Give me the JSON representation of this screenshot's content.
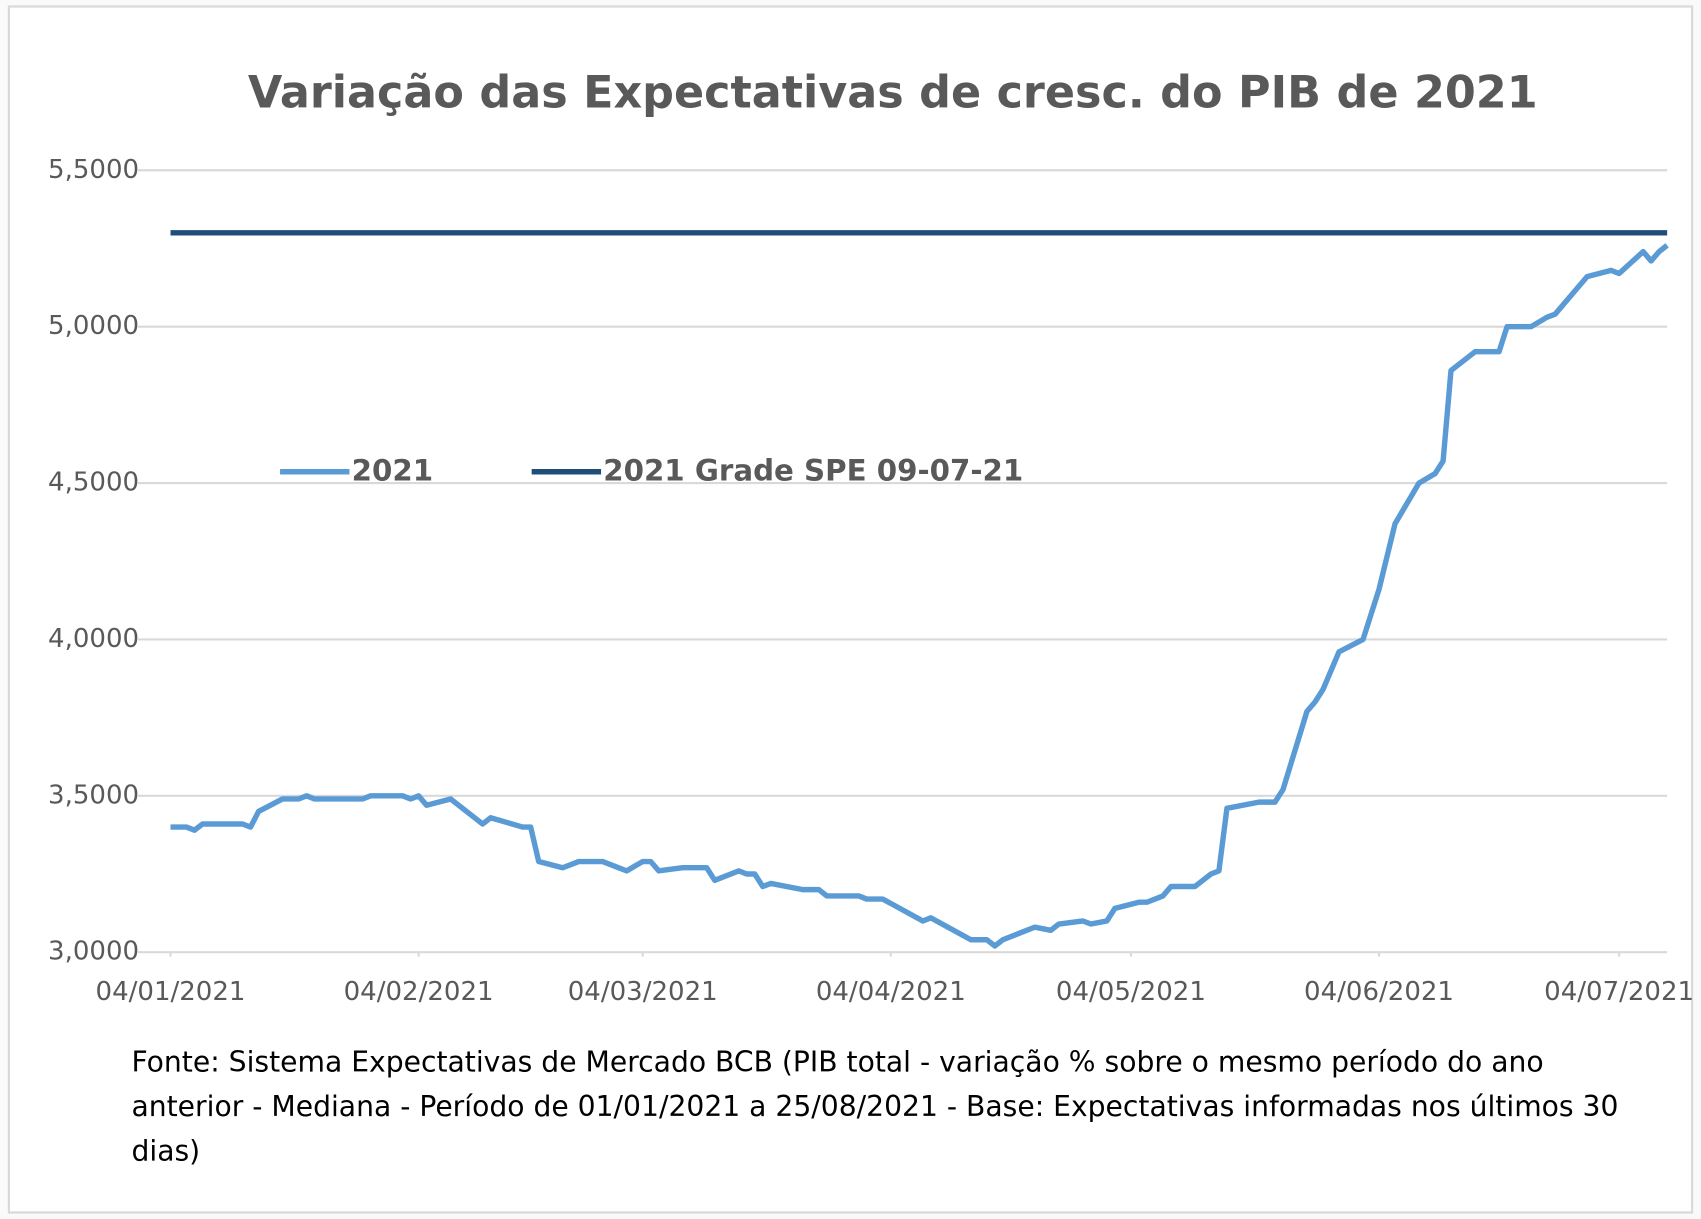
{
  "chart_data": {
    "type": "line",
    "title": "Variação das Expectativas de cresc. do PIB de 2021",
    "note": "Fonte: Sistema Expectativas de Mercado BCB (PIB total - variação % sobre o mesmo período do ano anterior - Mediana - Período de 01/01/2021 a 25/08/2021 - Base: Expectativas informadas nos últimos 30 dias)",
    "xlim": [
      "04/01/2021",
      "10/07/2021"
    ],
    "xticks": [
      "04/01/2021",
      "04/02/2021",
      "04/03/2021",
      "04/04/2021",
      "04/05/2021",
      "04/06/2021",
      "04/07/2021"
    ],
    "ylim": [
      3.0,
      5.5
    ],
    "yticks": [
      {
        "value": 3.0,
        "label": "3,0000"
      },
      {
        "value": 3.5,
        "label": "3,5000"
      },
      {
        "value": 4.0,
        "label": "4,0000"
      },
      {
        "value": 4.5,
        "label": "4,5000"
      },
      {
        "value": 5.0,
        "label": "5,0000"
      },
      {
        "value": 5.5,
        "label": "5,5000"
      }
    ],
    "grid": true,
    "legend": "top-left",
    "series": [
      {
        "name": "2021",
        "color": "#5b9bd5",
        "x": [
          "04/01/2021",
          "06/01/2021",
          "07/01/2021",
          "08/01/2021",
          "13/01/2021",
          "14/01/2021",
          "15/01/2021",
          "18/01/2021",
          "20/01/2021",
          "21/01/2021",
          "22/01/2021",
          "28/01/2021",
          "29/01/2021",
          "02/02/2021",
          "03/02/2021",
          "04/02/2021",
          "05/02/2021",
          "08/02/2021",
          "12/02/2021",
          "13/02/2021",
          "17/02/2021",
          "18/02/2021",
          "19/02/2021",
          "22/02/2021",
          "24/02/2021",
          "27/02/2021",
          "02/03/2021",
          "04/03/2021",
          "05/03/2021",
          "06/03/2021",
          "09/03/2021",
          "12/03/2021",
          "13/03/2021",
          "16/03/2021",
          "17/03/2021",
          "18/03/2021",
          "19/03/2021",
          "20/03/2021",
          "24/03/2021",
          "26/03/2021",
          "27/03/2021",
          "31/03/2021",
          "01/04/2021",
          "03/04/2021",
          "08/04/2021",
          "09/04/2021",
          "14/04/2021",
          "16/04/2021",
          "17/04/2021",
          "18/04/2021",
          "22/04/2021",
          "24/04/2021",
          "25/04/2021",
          "28/04/2021",
          "29/04/2021",
          "01/05/2021",
          "02/05/2021",
          "05/05/2021",
          "06/05/2021",
          "08/05/2021",
          "09/05/2021",
          "12/05/2021",
          "14/05/2021",
          "15/05/2021",
          "16/05/2021",
          "20/05/2021",
          "22/05/2021",
          "23/05/2021",
          "26/05/2021",
          "27/05/2021",
          "28/05/2021",
          "30/05/2021",
          "02/06/2021",
          "04/06/2021",
          "06/06/2021",
          "09/06/2021",
          "11/06/2021",
          "12/06/2021",
          "13/06/2021",
          "16/06/2021",
          "19/06/2021",
          "20/06/2021",
          "23/06/2021",
          "25/06/2021",
          "26/06/2021",
          "27/06/2021",
          "30/06/2021",
          "03/07/2021",
          "04/07/2021",
          "07/07/2021",
          "08/07/2021",
          "09/07/2021",
          "10/07/2021"
        ],
        "values": [
          3.4,
          3.4,
          3.39,
          3.41,
          3.41,
          3.4,
          3.45,
          3.49,
          3.49,
          3.5,
          3.49,
          3.49,
          3.5,
          3.5,
          3.49,
          3.5,
          3.47,
          3.49,
          3.41,
          3.43,
          3.4,
          3.4,
          3.29,
          3.27,
          3.29,
          3.29,
          3.26,
          3.29,
          3.29,
          3.26,
          3.27,
          3.27,
          3.23,
          3.26,
          3.25,
          3.25,
          3.21,
          3.22,
          3.2,
          3.2,
          3.18,
          3.18,
          3.17,
          3.17,
          3.1,
          3.11,
          3.04,
          3.04,
          3.02,
          3.04,
          3.08,
          3.07,
          3.09,
          3.1,
          3.09,
          3.1,
          3.14,
          3.16,
          3.16,
          3.18,
          3.21,
          3.21,
          3.25,
          3.26,
          3.46,
          3.48,
          3.48,
          3.52,
          3.77,
          3.8,
          3.84,
          3.96,
          4.0,
          4.16,
          4.37,
          4.5,
          4.53,
          4.57,
          4.86,
          4.92,
          4.92,
          5.0,
          5.0,
          5.03,
          5.04,
          5.07,
          5.16,
          5.18,
          5.17,
          5.24,
          5.21,
          5.24,
          5.26
        ]
      },
      {
        "name": "2021 Grade SPE 09-07-21",
        "color": "#1f4e79",
        "x": [
          "04/01/2021",
          "10/07/2021"
        ],
        "values": [
          5.3,
          5.3
        ]
      }
    ]
  }
}
